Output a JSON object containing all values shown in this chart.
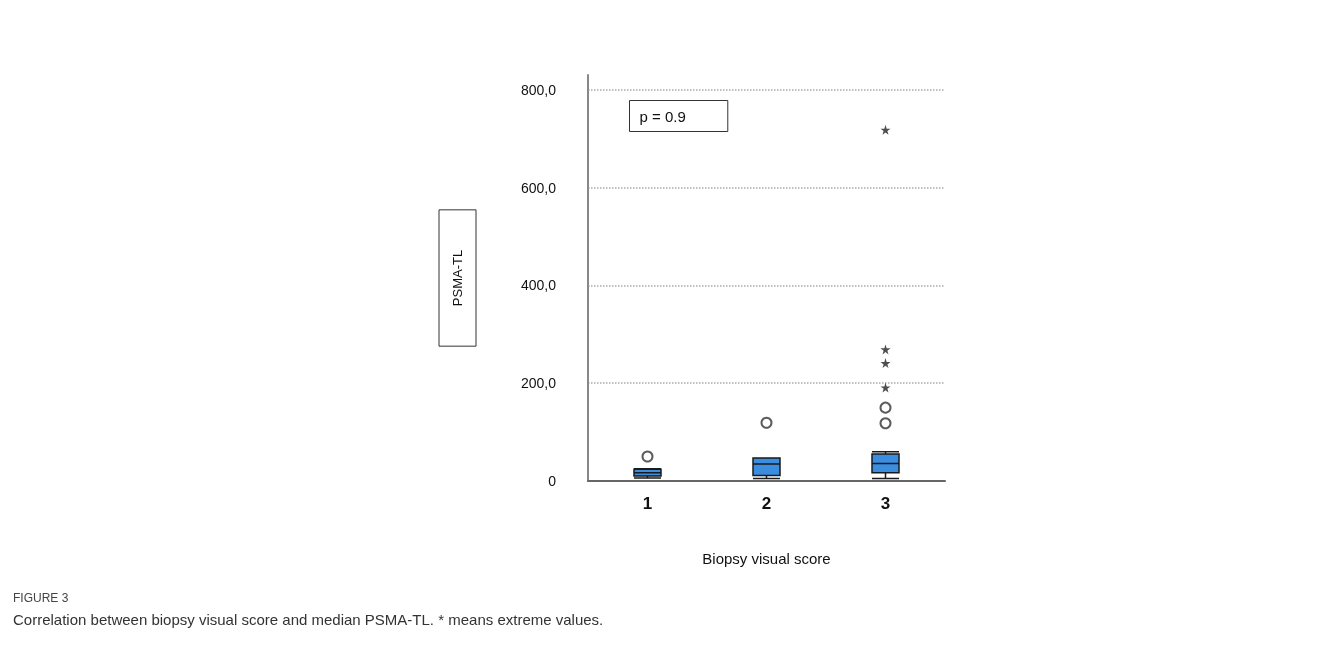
{
  "chart_data": {
    "type": "box",
    "ylabel": "PSMA-TL",
    "xlabel": "Biopsy visual score",
    "categories": [
      "1",
      "2",
      "3"
    ],
    "series": [
      {
        "color": "#3b8de0",
        "boxes": [
          {
            "low": 6,
            "q1": 10,
            "median": 17,
            "q3": 24,
            "high": 25,
            "outliers": [
              50
            ]
          },
          {
            "low": 5,
            "q1": 11,
            "median": 35,
            "q3": 47,
            "high": 47,
            "outliers": [
              119
            ]
          },
          {
            "low": 5,
            "q1": 17,
            "median": 36,
            "q3": 55,
            "high": 60,
            "outliers": [
              118,
              150
            ]
          }
        ]
      },
      {
        "type": "scatter",
        "marker": "star",
        "color": "#222222",
        "x": [
          "3",
          "3",
          "3",
          "3"
        ],
        "values": [
          191,
          241,
          269,
          718
        ]
      }
    ],
    "ylim": [
      0,
      830
    ],
    "yticks": [
      0,
      {
        "value": 200,
        "label": "200,0"
      },
      {
        "value": 400,
        "label": "400,0"
      },
      {
        "value": 600,
        "label": "600,0"
      },
      {
        "value": 800,
        "label": "800,0"
      }
    ],
    "grid": "y",
    "annotations": [
      "p = 0.9",
      "FIGURE 3",
      "Correlation between biopsy visual score and median PSMA-TL. * means extreme values."
    ]
  }
}
